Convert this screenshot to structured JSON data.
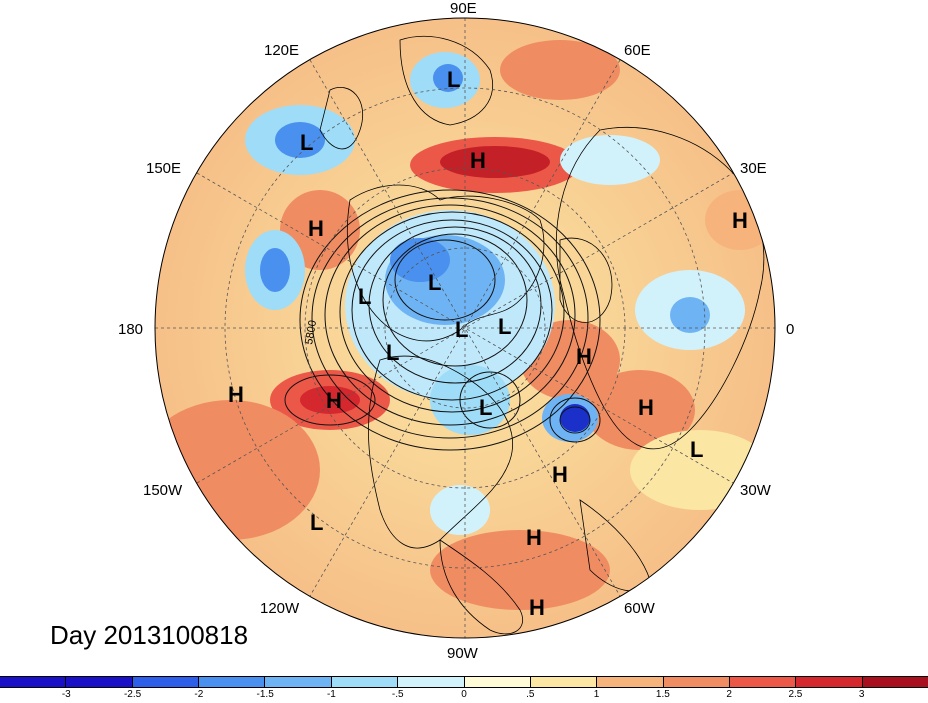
{
  "map": {
    "lon_labels": {
      "e90": "90E",
      "e60": "60E",
      "e30": "30E",
      "e120": "120E",
      "e150": "150E",
      "lon0": "0",
      "lon180": "180",
      "w30": "30W",
      "w60": "60W",
      "w90": "90W",
      "w120": "120W",
      "w150": "150W"
    },
    "contour_label": "5800",
    "day_label": "Day 2013100818",
    "pressure_centers": {
      "high": "H",
      "low": "L"
    }
  },
  "colorbar": {
    "colors": [
      "#1a10c8",
      "#2e5fe8",
      "#4a90ee",
      "#6eb4f4",
      "#9edcf8",
      "#d2f2fb",
      "#fffbd6",
      "#fbe6a4",
      "#f6b47c",
      "#f08c62",
      "#ec5848",
      "#d4282e",
      "#a81020"
    ],
    "tick_labels": [
      "-3",
      "-2.5",
      "-2",
      "-1.5",
      "-1",
      "-.5",
      "0",
      ".5",
      "1",
      "1.5",
      "2",
      "2.5",
      "3"
    ]
  }
}
